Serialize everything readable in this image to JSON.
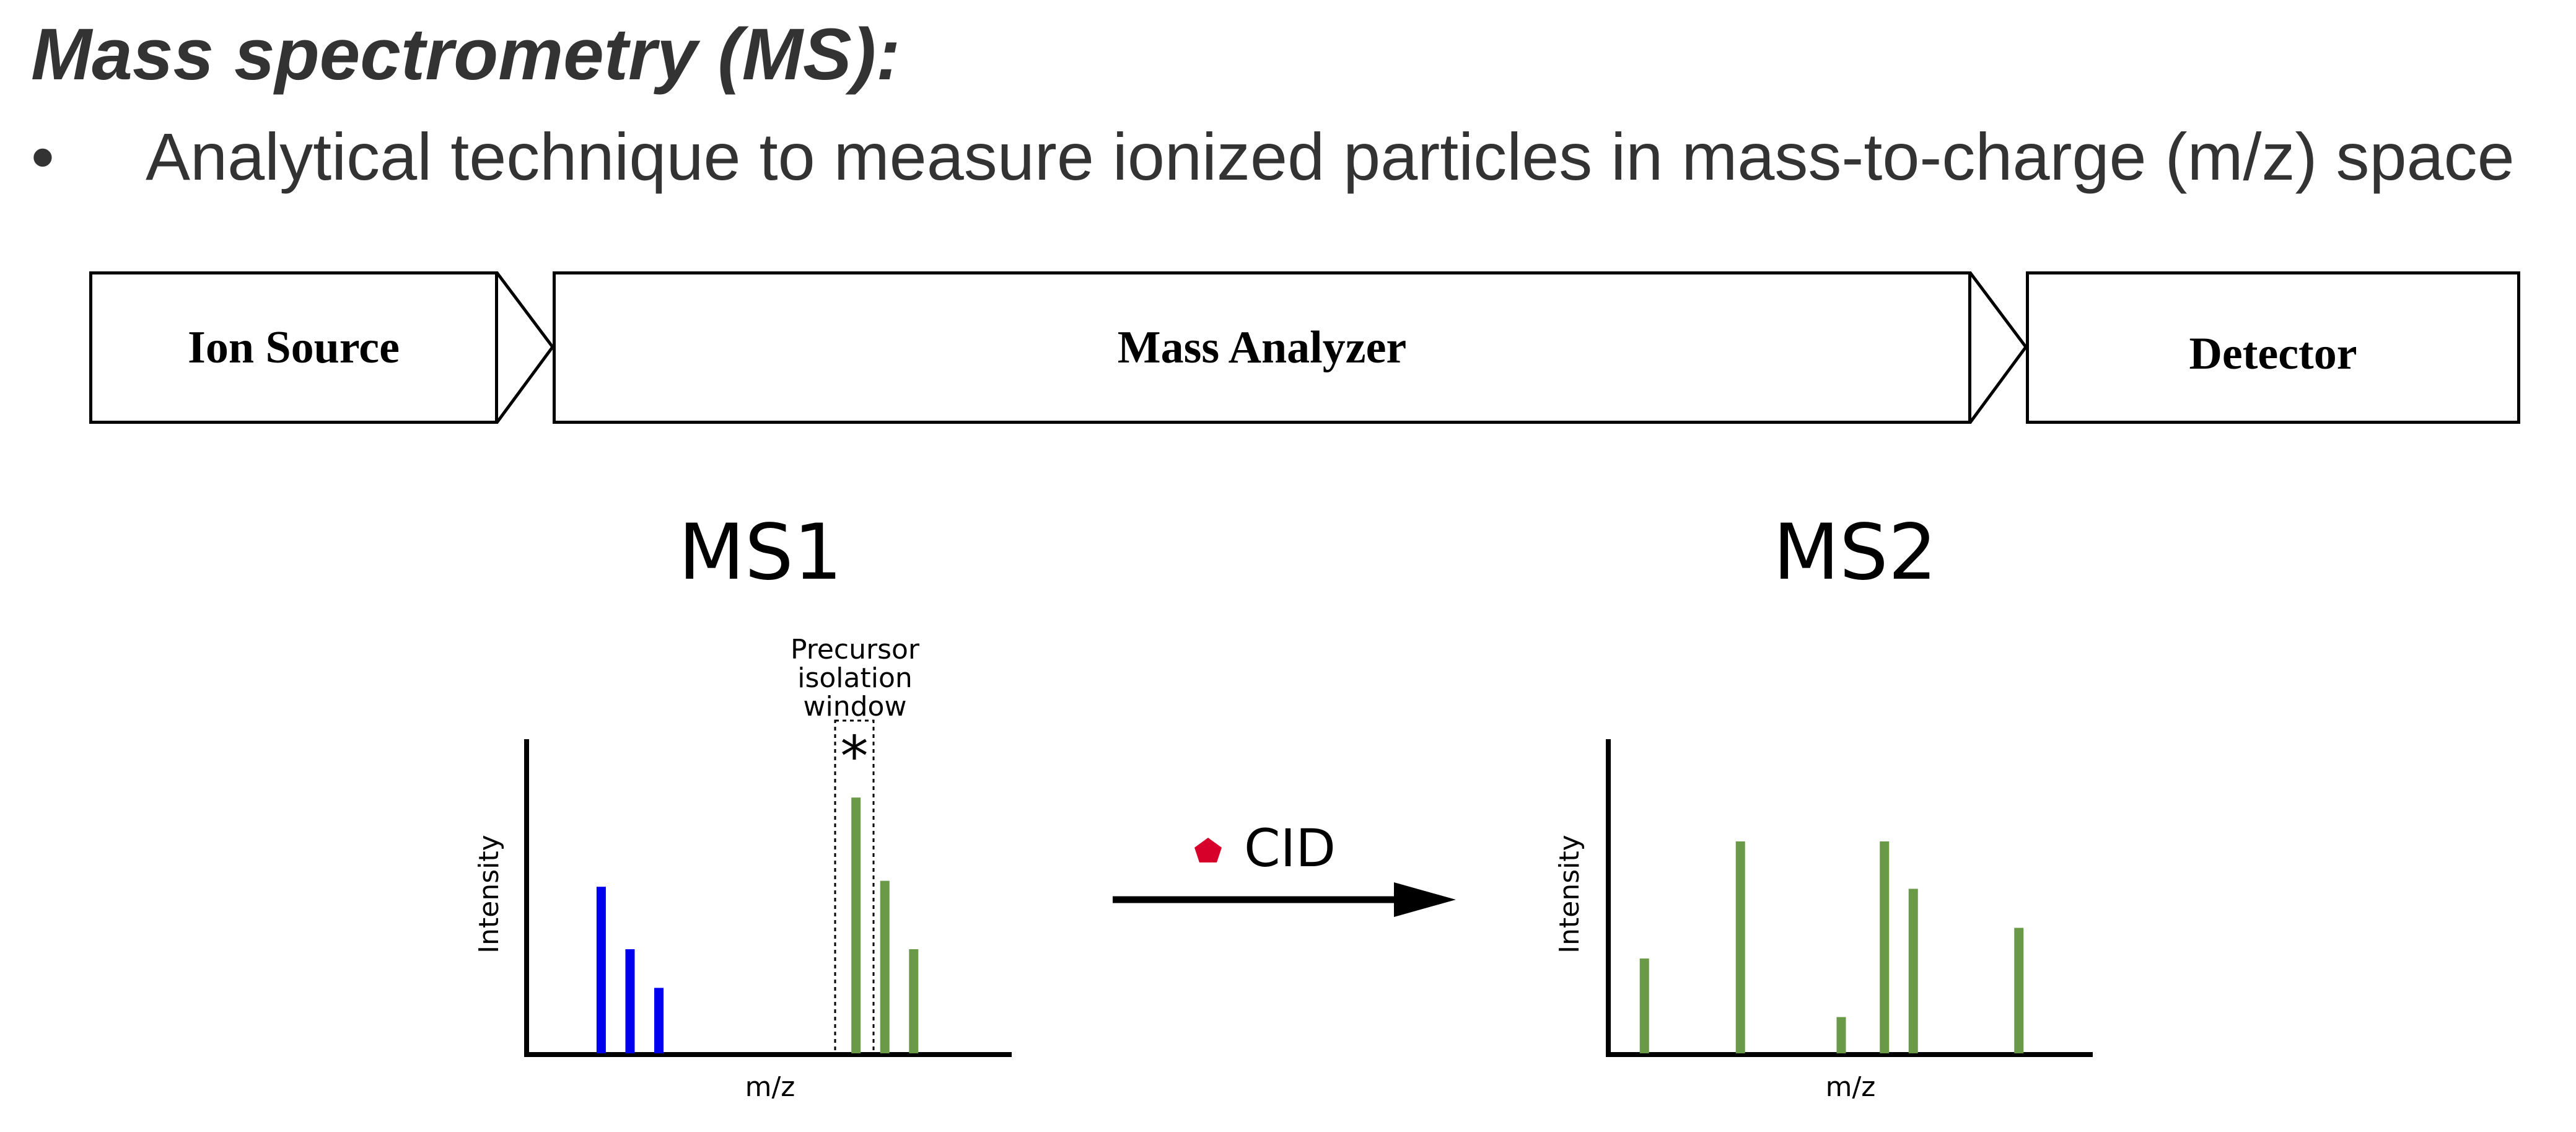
{
  "title": "Mass spectrometry (MS):",
  "bullet": {
    "symbol": "•",
    "text": "Analytical technique to measure ionized particles in mass-to-charge (m/z) space"
  },
  "workflow": {
    "stages": [
      "Ion Source",
      "Mass Analyzer",
      "Detector"
    ]
  },
  "spectra": {
    "ms1": {
      "label": "MS1",
      "xlabel": "m/z",
      "ylabel": "Intensity",
      "window_label_lines": [
        "Precursor",
        "isolation",
        "window"
      ],
      "marker": "*",
      "blue_color": "#0000ee",
      "green_color": "#6a9a48"
    },
    "ms2": {
      "label": "MS2",
      "xlabel": "m/z",
      "ylabel": "Intensity"
    },
    "transition": {
      "label": "CID",
      "marker_color": "#d6002a"
    }
  },
  "chart_data": [
    {
      "type": "bar",
      "title": "MS1",
      "xlabel": "m/z",
      "ylabel": "Intensity",
      "series": [
        {
          "color": "#0000ee",
          "x": [
            0.15,
            0.21,
            0.27
          ],
          "values": [
            0.56,
            0.35,
            0.22
          ]
        },
        {
          "color": "#6a9a48",
          "x": [
            0.68,
            0.74,
            0.8
          ],
          "values": [
            0.86,
            0.58,
            0.35
          ]
        }
      ],
      "xlim": [
        0,
        1
      ],
      "ylim": [
        0,
        1
      ]
    },
    {
      "type": "bar",
      "title": "MS2",
      "xlabel": "m/z",
      "ylabel": "Intensity",
      "series": [
        {
          "color": "#6a9a48",
          "x": [
            0.07,
            0.27,
            0.48,
            0.57,
            0.63,
            0.85
          ],
          "values": [
            0.34,
            0.76,
            0.13,
            0.76,
            0.59,
            0.45
          ]
        }
      ],
      "xlim": [
        0,
        1
      ],
      "ylim": [
        0,
        1
      ]
    }
  ]
}
